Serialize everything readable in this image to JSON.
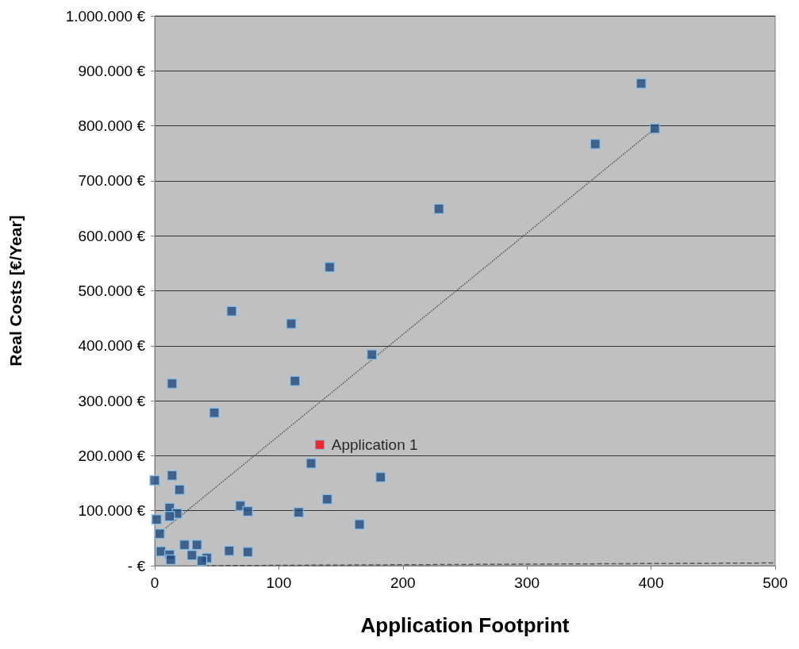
{
  "chart_data": {
    "type": "scatter",
    "xlabel": "Application Footprint",
    "ylabel": "Real Costs [€/Year]",
    "xlim": [
      0,
      500
    ],
    "xticks": [
      0,
      100,
      200,
      300,
      400,
      500
    ],
    "ylim": [
      0,
      1000000
    ],
    "yticks": [
      {
        "value": 0,
        "label": "- €"
      },
      {
        "value": 100000,
        "label": "100.000 €"
      },
      {
        "value": 200000,
        "label": "200.000 €"
      },
      {
        "value": 300000,
        "label": "300.000 €"
      },
      {
        "value": 400000,
        "label": "400.000 €"
      },
      {
        "value": 500000,
        "label": "500.000 €"
      },
      {
        "value": 600000,
        "label": "600.000 €"
      },
      {
        "value": 700000,
        "label": "700.000 €"
      },
      {
        "value": 800000,
        "label": "800.000 €"
      },
      {
        "value": 900000,
        "label": "900.000 €"
      },
      {
        "value": 1000000,
        "label": "1.000.000 €"
      }
    ],
    "grid": "y",
    "legend": false,
    "marker": "square",
    "series": [
      {
        "type": "line",
        "line_style": "dotted",
        "marker": "none",
        "color": "#555555",
        "x": [
          0,
          403
        ],
        "values": [
          52000,
          795000
        ]
      },
      {
        "type": "line",
        "line_style": "dashed",
        "marker": "none",
        "color": "#555555",
        "x": [
          40,
          500
        ],
        "values": [
          0,
          5000
        ]
      },
      {
        "color": "#1f497d",
        "x": [
          0,
          14,
          20,
          12,
          18,
          12,
          1.5,
          4,
          5,
          12,
          13,
          24,
          34,
          30,
          42,
          38,
          60,
          75,
          69,
          75,
          116,
          126,
          139,
          165,
          182,
          14,
          48,
          62,
          110,
          113,
          175,
          141,
          229,
          355,
          392,
          403
        ],
        "values": [
          155000,
          164000,
          138000,
          105000,
          95000,
          90000,
          84000,
          58000,
          26000,
          20000,
          11000,
          38000,
          38000,
          19000,
          14000,
          9000,
          27000,
          25000,
          109000,
          99000,
          97000,
          186000,
          121000,
          75000,
          161000,
          331000,
          278000,
          463000,
          440000,
          336000,
          384000,
          543000,
          649000,
          767000,
          877000,
          795000
        ]
      },
      {
        "name": "Application 1",
        "color": "#ff0000",
        "x": [
          133
        ],
        "values": [
          220000
        ]
      }
    ]
  }
}
